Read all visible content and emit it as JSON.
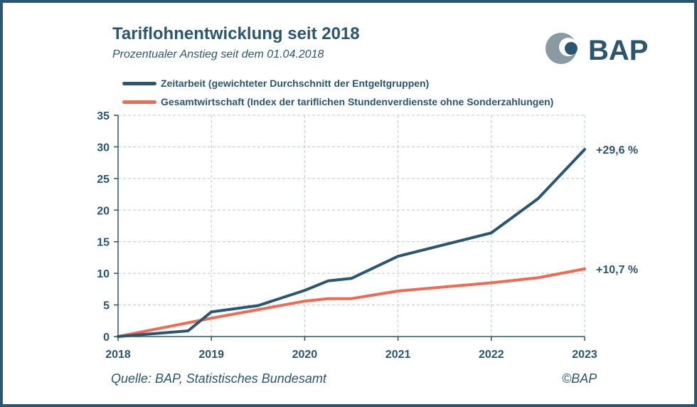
{
  "colors": {
    "primary": "#2b566f",
    "accent": "#ec6b52",
    "logo_gray": "#8a9aa3",
    "grid": "#b8c8d4"
  },
  "header": {
    "title": "Tariflohnentwicklung seit 2018",
    "subtitle": "Prozentualer Anstieg seit dem 01.04.2018"
  },
  "logo": {
    "text": "BAP",
    "icon": "bap-logo-icon"
  },
  "footer": {
    "source": "Quelle: BAP, Statistisches Bundesamt",
    "copyright": "©BAP"
  },
  "chart_data": {
    "type": "line",
    "title": "Tariflohnentwicklung seit 2018",
    "subtitle": "Prozentualer Anstieg seit dem 01.04.2018",
    "xlabel": "",
    "ylabel": "",
    "xlim": [
      2018,
      2023
    ],
    "ylim": [
      0,
      35
    ],
    "x_ticks": [
      2018,
      2019,
      2020,
      2021,
      2022,
      2023
    ],
    "y_ticks": [
      0,
      5,
      10,
      15,
      20,
      25,
      30,
      35
    ],
    "grid": true,
    "legend_position": "top-left",
    "series": [
      {
        "name": "Zeitarbeit (gewichteter Durchschnitt der Entgeltgruppen)",
        "color": "#2b566f",
        "end_label": "+29,6 %",
        "points": [
          [
            2018.0,
            0.0
          ],
          [
            2018.75,
            0.9
          ],
          [
            2019.0,
            3.9
          ],
          [
            2019.5,
            4.9
          ],
          [
            2020.0,
            7.3
          ],
          [
            2020.25,
            8.8
          ],
          [
            2020.5,
            9.2
          ],
          [
            2021.0,
            12.7
          ],
          [
            2022.0,
            16.4
          ],
          [
            2022.5,
            21.8
          ],
          [
            2023.0,
            29.6
          ]
        ]
      },
      {
        "name": "Gesamtwirtschaft (Index der tariflichen Stundenverdienste ohne Sonderzahlungen)",
        "color": "#ec6b52",
        "end_label": "+10,7 %",
        "points": [
          [
            2018.0,
            0.0
          ],
          [
            2019.0,
            2.9
          ],
          [
            2020.0,
            5.6
          ],
          [
            2020.25,
            6.0
          ],
          [
            2020.5,
            6.0
          ],
          [
            2021.0,
            7.2
          ],
          [
            2022.0,
            8.5
          ],
          [
            2022.5,
            9.3
          ],
          [
            2023.0,
            10.7
          ]
        ]
      }
    ]
  }
}
